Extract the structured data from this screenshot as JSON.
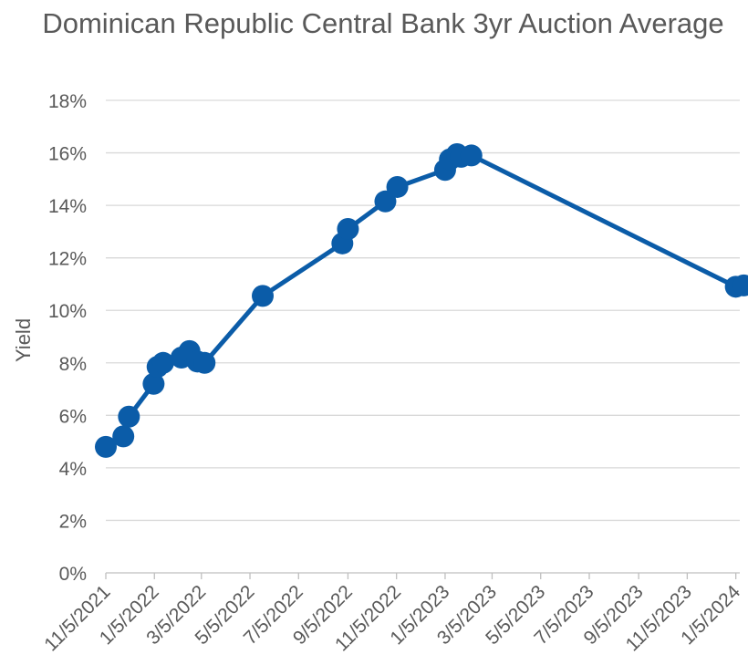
{
  "chart_data": {
    "type": "line",
    "title": "Dominican Republic Central Bank 3yr Auction Average",
    "ylabel": "Yield",
    "xlabel": "",
    "ylim": [
      0,
      0.18
    ],
    "ytick_values": [
      0,
      0.02,
      0.04,
      0.06,
      0.08,
      0.1,
      0.12,
      0.14,
      0.16,
      0.18
    ],
    "ytick_labels": [
      "0%",
      "2%",
      "4%",
      "6%",
      "8%",
      "10%",
      "12%",
      "14%",
      "16%",
      "18%"
    ],
    "xlim": [
      "2021-11-05",
      "2024-01-10"
    ],
    "xtick_values": [
      "2021-11-05",
      "2022-01-05",
      "2022-03-05",
      "2022-05-05",
      "2022-07-05",
      "2022-09-05",
      "2022-11-05",
      "2023-01-05",
      "2023-03-05",
      "2023-05-05",
      "2023-07-05",
      "2023-09-05",
      "2023-11-05",
      "2024-01-05"
    ],
    "xtick_labels": [
      "11/5/2021",
      "1/5/2022",
      "3/5/2022",
      "5/5/2022",
      "7/5/2022",
      "9/5/2022",
      "11/5/2022",
      "1/5/2023",
      "3/5/2023",
      "5/5/2023",
      "7/5/2023",
      "9/5/2023",
      "11/5/2023",
      "1/5/2024"
    ],
    "grid": true,
    "legend": "none",
    "series": [
      {
        "color": "#0b5ca8",
        "points": [
          {
            "x": "2021-11-05",
            "y": 0.048
          },
          {
            "x": "2021-11-27",
            "y": 0.052
          },
          {
            "x": "2021-12-04",
            "y": 0.0595
          },
          {
            "x": "2022-01-04",
            "y": 0.072
          },
          {
            "x": "2022-01-09",
            "y": 0.0785
          },
          {
            "x": "2022-01-16",
            "y": 0.08
          },
          {
            "x": "2022-02-08",
            "y": 0.082
          },
          {
            "x": "2022-02-18",
            "y": 0.0845
          },
          {
            "x": "2022-02-28",
            "y": 0.0805
          },
          {
            "x": "2022-03-09",
            "y": 0.08
          },
          {
            "x": "2022-05-21",
            "y": 0.1055
          },
          {
            "x": "2022-08-29",
            "y": 0.1255
          },
          {
            "x": "2022-09-05",
            "y": 0.131
          },
          {
            "x": "2022-10-22",
            "y": 0.1415
          },
          {
            "x": "2022-11-06",
            "y": 0.147
          },
          {
            "x": "2023-01-05",
            "y": 0.1535
          },
          {
            "x": "2023-01-11",
            "y": 0.1575
          },
          {
            "x": "2023-01-20",
            "y": 0.1595
          },
          {
            "x": "2023-01-25",
            "y": 0.1585
          },
          {
            "x": "2023-02-07",
            "y": 0.159
          },
          {
            "x": "2024-01-05",
            "y": 0.109
          },
          {
            "x": "2024-01-15",
            "y": 0.1095
          }
        ]
      }
    ]
  }
}
